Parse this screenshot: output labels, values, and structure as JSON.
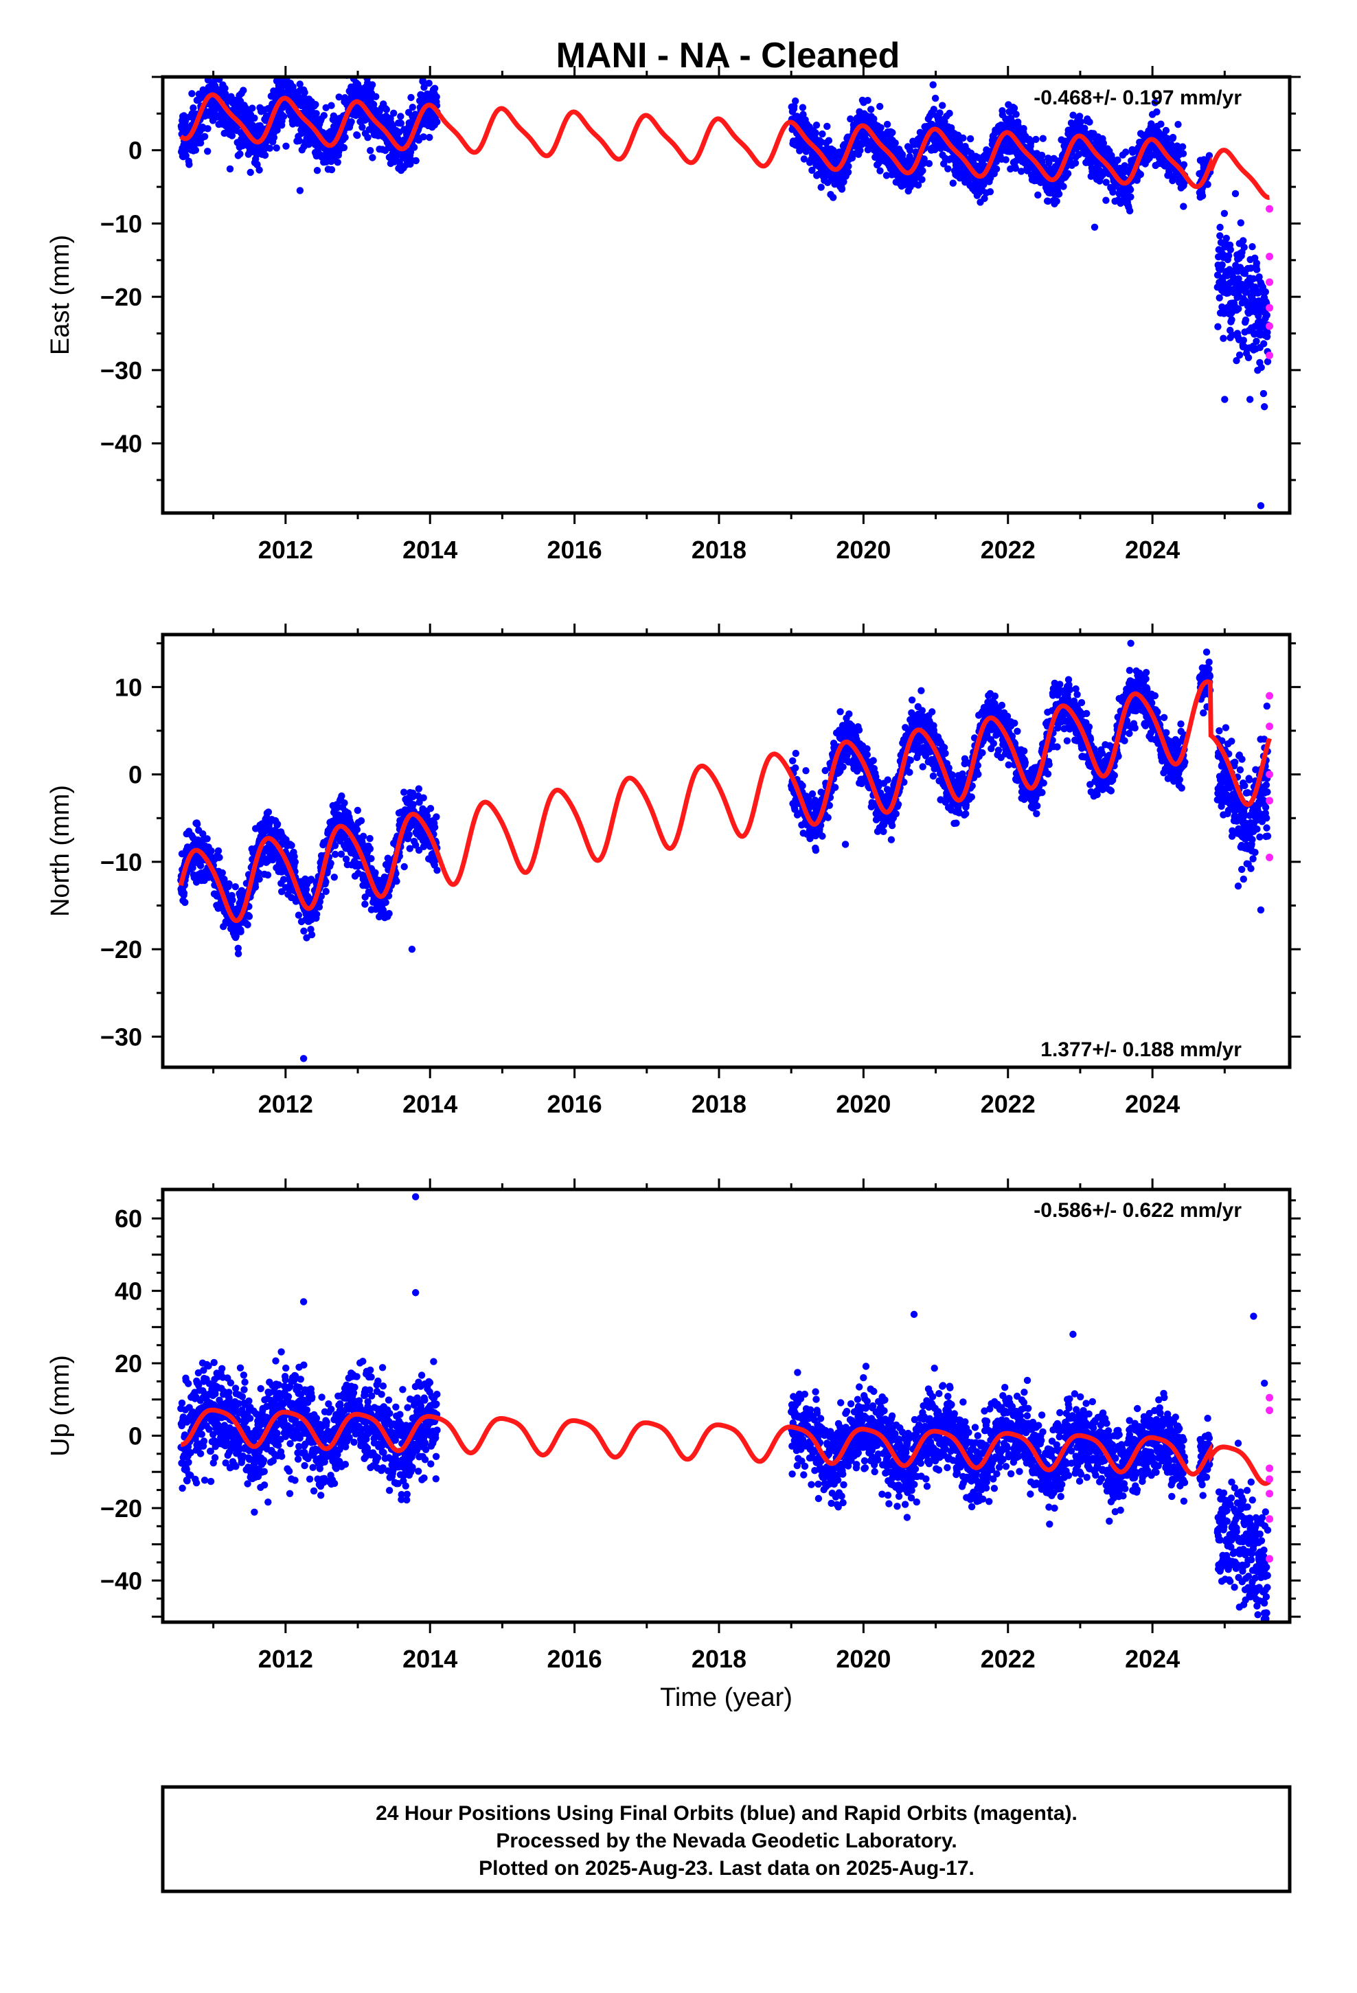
{
  "title": "MANI  - NA - Cleaned",
  "footer": {
    "lines": [
      "24 Hour Positions Using Final Orbits (blue) and Rapid Orbits (magenta).",
      "Processed by the Nevada Geodetic Laboratory.",
      "Plotted on 2025-Aug-23. Last data on 2025-Aug-17."
    ]
  },
  "colors": {
    "final": "#0000ff",
    "rapid": "#ff22ff",
    "model": "#ff1a1a",
    "frame": "#000000"
  },
  "chart_data": [
    {
      "type": "scatter",
      "name": "east",
      "ylabel": "East (mm)",
      "xlabel": "",
      "rate": "-0.468+/- 0.197 mm/yr",
      "xlim": [
        2010.3,
        2025.9
      ],
      "ylim": [
        -49.5,
        10
      ],
      "xticks": [
        2012,
        2014,
        2016,
        2018,
        2020,
        2022,
        2024
      ],
      "yticks": [
        0,
        -10,
        -20,
        -30,
        -40
      ],
      "grid": false,
      "model": {
        "offset": 1.2,
        "trend": -0.468,
        "t0": 2018.0,
        "amp": 2.8,
        "phase": 0.8,
        "amp2": 0.7,
        "phase2": 0.3,
        "steps": [
          [
            2024.8,
            -1.0
          ]
        ]
      },
      "segments": [
        {
          "start": 2010.55,
          "end": 2014.1,
          "spread": 1.8
        },
        {
          "start": 2019.0,
          "end": 2024.45,
          "spread": 1.6
        },
        {
          "start": 2024.65,
          "end": 2024.8,
          "spread": 1.2
        },
        {
          "start": 2024.9,
          "end": 2025.6,
          "spread": 4.0,
          "shift": -17.0
        }
      ],
      "rapid": [
        [
          2025.62,
          -8
        ],
        [
          2025.62,
          -14.5
        ],
        [
          2025.62,
          -18
        ],
        [
          2025.62,
          -21.5
        ],
        [
          2025.62,
          -24
        ],
        [
          2025.62,
          -28
        ]
      ],
      "outliers": [
        [
          2011.95,
          4
        ],
        [
          2012.2,
          -5.5
        ],
        [
          2013.0,
          9
        ],
        [
          2013.9,
          9.5
        ],
        [
          2023.2,
          -10.5
        ],
        [
          2025.0,
          -34
        ],
        [
          2025.35,
          -34
        ],
        [
          2025.55,
          -35
        ],
        [
          2025.5,
          -48.5
        ]
      ]
    },
    {
      "type": "scatter",
      "name": "north",
      "ylabel": "North (mm)",
      "xlabel": "",
      "rate": "1.377+/- 0.188 mm/yr",
      "xlim": [
        2010.3,
        2025.9
      ],
      "ylim": [
        -33.5,
        16
      ],
      "xticks": [
        2012,
        2014,
        2016,
        2018,
        2020,
        2022,
        2024
      ],
      "yticks": [
        10,
        0,
        -10,
        -20,
        -30
      ],
      "grid": false,
      "model": {
        "offset": -2.8,
        "trend": 1.377,
        "t0": 2018.0,
        "amp": 4.3,
        "phase": 0.55,
        "amp2": 0.6,
        "phase2": 0.0,
        "steps": [
          [
            2024.8,
            -6.0
          ]
        ]
      },
      "segments": [
        {
          "start": 2010.55,
          "end": 2014.1,
          "spread": 1.5
        },
        {
          "start": 2019.0,
          "end": 2024.45,
          "spread": 1.4
        },
        {
          "start": 2024.65,
          "end": 2024.8,
          "spread": 1.2
        },
        {
          "start": 2024.9,
          "end": 2025.6,
          "spread": 3.0,
          "shift": -2.5
        }
      ],
      "rapid": [
        [
          2025.62,
          9
        ],
        [
          2025.62,
          5.5
        ],
        [
          2025.62,
          0
        ],
        [
          2025.62,
          -3
        ],
        [
          2025.62,
          -9.5
        ]
      ],
      "outliers": [
        [
          2012.25,
          -32.5
        ],
        [
          2013.75,
          -20
        ],
        [
          2019.75,
          -8
        ],
        [
          2023.7,
          15
        ],
        [
          2024.75,
          14
        ],
        [
          2025.5,
          -15.5
        ]
      ]
    },
    {
      "type": "scatter",
      "name": "up",
      "ylabel": "Up (mm)",
      "xlabel": "Time (year)",
      "rate": "-0.586+/- 0.622 mm/yr",
      "xlim": [
        2010.3,
        2025.9
      ],
      "ylim": [
        -51.5,
        68
      ],
      "xticks": [
        2012,
        2014,
        2016,
        2018,
        2020,
        2022,
        2024
      ],
      "yticks": [
        60,
        40,
        20,
        0,
        -20,
        -40
      ],
      "grid": false,
      "model": {
        "offset": -1.0,
        "trend": -0.586,
        "t0": 2018.0,
        "amp": 4.8,
        "phase": 0.8,
        "amp2": 1.0,
        "phase2": 0.2,
        "steps": [
          [
            2024.8,
            -2.0
          ]
        ]
      },
      "segments": [
        {
          "start": 2010.55,
          "end": 2014.1,
          "spread": 6.5
        },
        {
          "start": 2019.0,
          "end": 2024.45,
          "spread": 5.5
        },
        {
          "start": 2024.65,
          "end": 2024.8,
          "spread": 4.0
        },
        {
          "start": 2024.9,
          "end": 2025.6,
          "spread": 8.0,
          "shift": -24.0
        }
      ],
      "rapid": [
        [
          2025.62,
          10.5
        ],
        [
          2025.62,
          7
        ],
        [
          2025.62,
          -9
        ],
        [
          2025.62,
          -12
        ],
        [
          2025.62,
          -16
        ],
        [
          2025.62,
          -23
        ],
        [
          2025.62,
          -34
        ]
      ],
      "outliers": [
        [
          2012.25,
          37
        ],
        [
          2013.8,
          66
        ],
        [
          2013.8,
          39.5
        ],
        [
          2020.7,
          33.5
        ],
        [
          2022.9,
          28
        ],
        [
          2025.4,
          33
        ],
        [
          2025.55,
          14.5
        ],
        [
          2025.55,
          -49
        ]
      ]
    }
  ]
}
